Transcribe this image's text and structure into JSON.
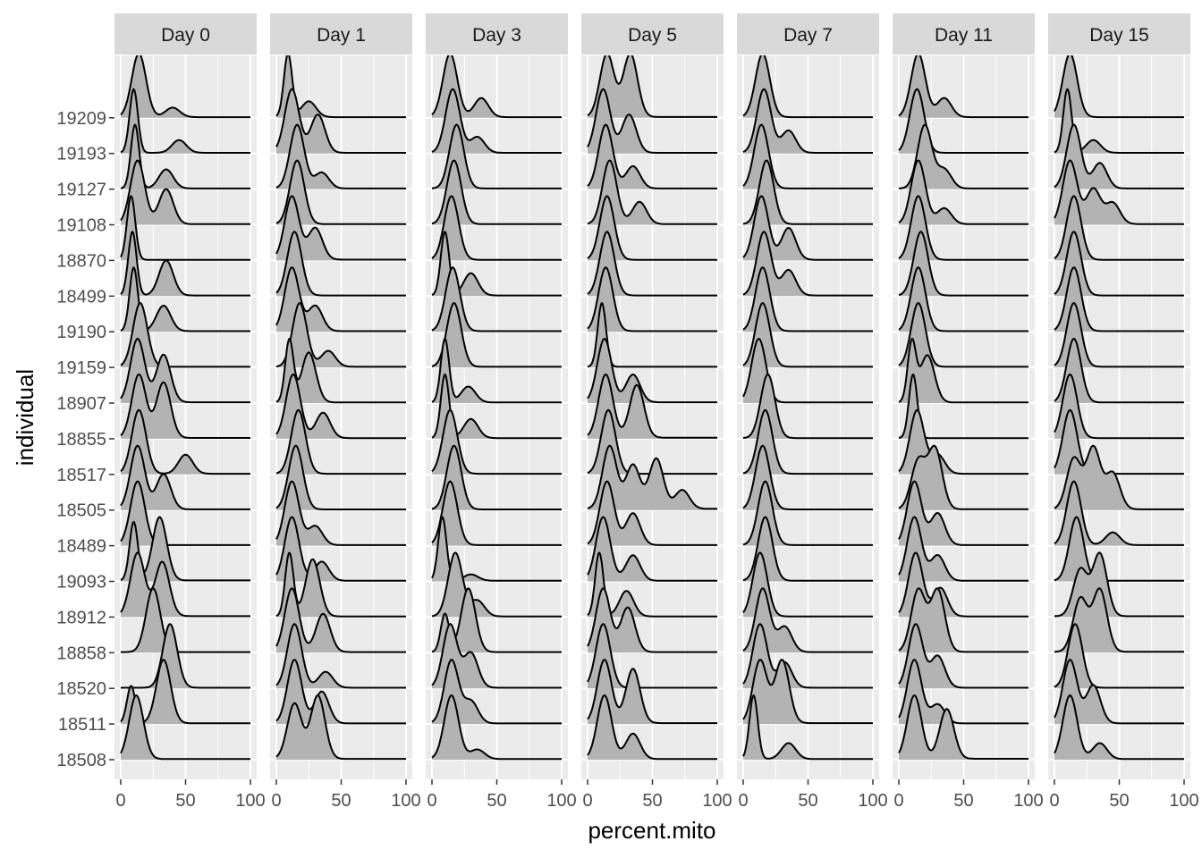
{
  "chart_data": {
    "type": "ridgeline",
    "xlabel": "percent.mito",
    "ylabel": "individual",
    "xlim": [
      0,
      100
    ],
    "x_ticks": [
      0,
      50,
      100
    ],
    "x_tick_labels": [
      "0",
      "50",
      "100"
    ],
    "grid": true,
    "colors": {
      "panel": "#ebebeb",
      "strip": "#d9d9d9",
      "fill": "#b3b3b3",
      "line": "#000000",
      "grid": "#ffffff"
    },
    "panels": [
      "Day 0",
      "Day 1",
      "Day 3",
      "Day 5",
      "Day 7",
      "Day 11",
      "Day 15"
    ],
    "individuals": [
      "18508",
      "18511",
      "18520",
      "18858",
      "18912",
      "19093",
      "18489",
      "18505",
      "18517",
      "18855",
      "18907",
      "19159",
      "19190",
      "18499",
      "18870",
      "19108",
      "19127",
      "19193",
      "19209"
    ],
    "densities": [
      [
        [
          [
            12,
            1
          ]
        ],
        [
          [
            8,
            0.5
          ],
          [
            33,
            0.85
          ]
        ],
        [
          [
            38,
            1
          ]
        ],
        [
          [
            25,
            1
          ]
        ],
        [
          [
            13,
            0.7
          ],
          [
            32,
            0.6
          ]
        ],
        [
          [
            10,
            0.6
          ],
          [
            30,
            0.65
          ]
        ],
        [
          [
            13,
            1
          ]
        ],
        [
          [
            13,
            0.9
          ],
          [
            33,
            0.5
          ]
        ],
        [
          [
            14,
            1
          ],
          [
            50,
            0.3
          ]
        ],
        [
          [
            14,
            0.8
          ],
          [
            33,
            0.7
          ]
        ],
        [
          [
            13,
            0.8
          ],
          [
            33,
            0.6
          ]
        ],
        [
          [
            15,
            1
          ]
        ],
        [
          [
            10,
            1
          ],
          [
            33,
            0.4
          ]
        ],
        [
          [
            9,
            1
          ],
          [
            35,
            0.55
          ]
        ],
        [
          [
            8,
            1
          ]
        ],
        [
          [
            13,
            1
          ],
          [
            35,
            0.55
          ]
        ],
        [
          [
            11,
            1
          ],
          [
            35,
            0.3
          ]
        ],
        [
          [
            10,
            1
          ],
          [
            45,
            0.2
          ]
        ],
        [
          [
            14,
            1
          ],
          [
            40,
            0.15
          ]
        ]
      ],
      [
        [
          [
            14,
            0.7
          ],
          [
            32,
            0.8
          ]
        ],
        [
          [
            14,
            1
          ],
          [
            35,
            0.5
          ]
        ],
        [
          [
            14,
            1
          ],
          [
            38,
            0.25
          ]
        ],
        [
          [
            12,
            1
          ],
          [
            36,
            0.6
          ]
        ],
        [
          [
            10,
            1
          ],
          [
            28,
            0.9
          ]
        ],
        [
          [
            12,
            1
          ],
          [
            35,
            0.3
          ]
        ],
        [
          [
            12,
            1
          ],
          [
            30,
            0.3
          ]
        ],
        [
          [
            15,
            1
          ]
        ],
        [
          [
            17,
            1
          ]
        ],
        [
          [
            13,
            1
          ],
          [
            36,
            0.4
          ]
        ],
        [
          [
            10,
            1
          ],
          [
            25,
            0.8
          ]
        ],
        [
          [
            18,
            1
          ],
          [
            40,
            0.25
          ]
        ],
        [
          [
            12,
            1
          ],
          [
            30,
            0.4
          ]
        ],
        [
          [
            14,
            1
          ]
        ],
        [
          [
            12,
            0.8
          ],
          [
            30,
            0.4
          ]
        ],
        [
          [
            16,
            1
          ]
        ],
        [
          [
            16,
            1
          ],
          [
            35,
            0.25
          ]
        ],
        [
          [
            12,
            1
          ],
          [
            32,
            0.6
          ]
        ],
        [
          [
            9,
            1
          ],
          [
            25,
            0.25
          ]
        ]
      ],
      [
        [
          [
            15,
            1
          ],
          [
            35,
            0.15
          ]
        ],
        [
          [
            15,
            1
          ],
          [
            30,
            0.35
          ]
        ],
        [
          [
            14,
            1
          ],
          [
            30,
            0.55
          ]
        ],
        [
          [
            10,
            0.6
          ],
          [
            28,
            1
          ]
        ],
        [
          [
            18,
            1
          ],
          [
            35,
            0.25
          ]
        ],
        [
          [
            8,
            1
          ],
          [
            30,
            0.1
          ]
        ],
        [
          [
            14,
            1
          ]
        ],
        [
          [
            17,
            1
          ]
        ],
        [
          [
            14,
            1
          ]
        ],
        [
          [
            10,
            1
          ],
          [
            30,
            0.3
          ]
        ],
        [
          [
            10,
            1
          ],
          [
            28,
            0.25
          ]
        ],
        [
          [
            17,
            1
          ]
        ],
        [
          [
            16,
            1
          ]
        ],
        [
          [
            10,
            1
          ],
          [
            30,
            0.35
          ]
        ],
        [
          [
            15,
            1
          ]
        ],
        [
          [
            17,
            1
          ]
        ],
        [
          [
            19,
            1
          ]
        ],
        [
          [
            16,
            1
          ],
          [
            35,
            0.25
          ]
        ],
        [
          [
            14,
            1
          ],
          [
            38,
            0.3
          ]
        ]
      ],
      [
        [
          [
            13,
            1
          ],
          [
            35,
            0.4
          ]
        ],
        [
          [
            13,
            0.7
          ],
          [
            35,
            0.6
          ]
        ],
        [
          [
            12,
            1
          ]
        ],
        [
          [
            12,
            1
          ],
          [
            31,
            0.7
          ]
        ],
        [
          [
            9,
            1
          ],
          [
            30,
            0.4
          ]
        ],
        [
          [
            12,
            1
          ],
          [
            35,
            0.4
          ]
        ],
        [
          [
            15,
            1
          ],
          [
            35,
            0.5
          ]
        ],
        [
          [
            17,
            0.5
          ],
          [
            35,
            0.35
          ],
          [
            53,
            0.4
          ],
          [
            73,
            0.15
          ]
        ],
        [
          [
            16,
            1
          ]
        ],
        [
          [
            14,
            0.6
          ],
          [
            38,
            0.5
          ]
        ],
        [
          [
            13,
            0.8
          ],
          [
            35,
            0.35
          ]
        ],
        [
          [
            11,
            1
          ]
        ],
        [
          [
            14,
            1
          ]
        ],
        [
          [
            15,
            1
          ]
        ],
        [
          [
            15,
            1
          ]
        ],
        [
          [
            17,
            1
          ],
          [
            40,
            0.35
          ]
        ],
        [
          [
            14,
            1
          ],
          [
            35,
            0.35
          ]
        ],
        [
          [
            12,
            1
          ],
          [
            32,
            0.6
          ]
        ],
        [
          [
            15,
            0.8
          ],
          [
            33,
            0.8
          ]
        ]
      ],
      [
        [
          [
            8,
            1
          ],
          [
            35,
            0.25
          ]
        ],
        [
          [
            13,
            0.7
          ],
          [
            30,
            0.7
          ]
        ],
        [
          [
            13,
            1
          ],
          [
            32,
            0.4
          ]
        ],
        [
          [
            15,
            1
          ],
          [
            32,
            0.4
          ]
        ],
        [
          [
            13,
            1
          ]
        ],
        [
          [
            17,
            1
          ]
        ],
        [
          [
            17,
            1
          ]
        ],
        [
          [
            15,
            1
          ]
        ],
        [
          [
            17,
            1
          ]
        ],
        [
          [
            19,
            1
          ]
        ],
        [
          [
            12,
            1
          ]
        ],
        [
          [
            15,
            1
          ]
        ],
        [
          [
            15,
            1
          ]
        ],
        [
          [
            16,
            1
          ],
          [
            35,
            0.4
          ]
        ],
        [
          [
            14,
            1
          ],
          [
            35,
            0.5
          ]
        ],
        [
          [
            18,
            1
          ]
        ],
        [
          [
            14,
            1
          ]
        ],
        [
          [
            16,
            1
          ],
          [
            35,
            0.35
          ]
        ],
        [
          [
            15,
            1
          ]
        ]
      ],
      [
        [
          [
            12,
            0.7
          ],
          [
            37,
            0.55
          ]
        ],
        [
          [
            12,
            1
          ],
          [
            30,
            0.3
          ]
        ],
        [
          [
            13,
            1
          ],
          [
            30,
            0.5
          ]
        ],
        [
          [
            15,
            0.8
          ],
          [
            30,
            0.8
          ]
        ],
        [
          [
            13,
            1
          ],
          [
            32,
            0.45
          ]
        ],
        [
          [
            12,
            1
          ],
          [
            30,
            0.4
          ]
        ],
        [
          [
            12,
            1
          ],
          [
            30,
            0.5
          ]
        ],
        [
          [
            15,
            0.6
          ],
          [
            28,
            0.75
          ]
        ],
        [
          [
            14,
            1
          ],
          [
            30,
            0.3
          ]
        ],
        [
          [
            11,
            1
          ]
        ],
        [
          [
            10,
            1
          ],
          [
            22,
            0.8
          ]
        ],
        [
          [
            15,
            1
          ]
        ],
        [
          [
            15,
            1
          ]
        ],
        [
          [
            17,
            1
          ]
        ],
        [
          [
            15,
            1
          ]
        ],
        [
          [
            15,
            1
          ],
          [
            35,
            0.25
          ]
        ],
        [
          [
            20,
            1
          ],
          [
            35,
            0.3
          ]
        ],
        [
          [
            14,
            1
          ]
        ],
        [
          [
            15,
            1
          ],
          [
            35,
            0.3
          ]
        ]
      ],
      [
        [
          [
            12,
            1
          ],
          [
            35,
            0.25
          ]
        ],
        [
          [
            12,
            1
          ],
          [
            30,
            0.6
          ]
        ],
        [
          [
            16,
            1
          ]
        ],
        [
          [
            20,
            0.6
          ],
          [
            35,
            0.7
          ]
        ],
        [
          [
            20,
            0.6
          ],
          [
            35,
            0.8
          ]
        ],
        [
          [
            17,
            1
          ]
        ],
        [
          [
            15,
            1
          ],
          [
            45,
            0.2
          ]
        ],
        [
          [
            15,
            0.7
          ],
          [
            30,
            0.85
          ],
          [
            45,
            0.5
          ]
        ],
        [
          [
            12,
            1
          ]
        ],
        [
          [
            12,
            1
          ]
        ],
        [
          [
            15,
            1
          ]
        ],
        [
          [
            15,
            1
          ]
        ],
        [
          [
            15,
            1
          ]
        ],
        [
          [
            15,
            1
          ]
        ],
        [
          [
            15,
            1
          ]
        ],
        [
          [
            12,
            0.9
          ],
          [
            30,
            0.5
          ],
          [
            45,
            0.3
          ]
        ],
        [
          [
            15,
            1
          ],
          [
            35,
            0.4
          ]
        ],
        [
          [
            10,
            1
          ],
          [
            30,
            0.2
          ]
        ],
        [
          [
            12,
            1
          ]
        ]
      ]
    ]
  }
}
